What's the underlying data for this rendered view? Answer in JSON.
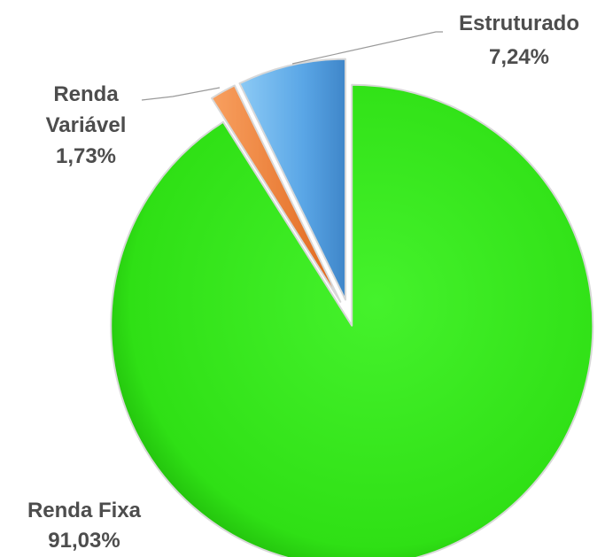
{
  "chart_data": {
    "type": "pie",
    "title": "",
    "slices": [
      {
        "label": "Estruturado",
        "value": 7.24,
        "display": "7,24%",
        "color": "#5aa6e6"
      },
      {
        "label": "Renda Fixa",
        "value": 91.03,
        "display": "91,03%",
        "color": "#33e61a"
      },
      {
        "label": "Renda Variável",
        "label_lines": [
          "Renda",
          "Variável"
        ],
        "value": 1.73,
        "display": "1,73%",
        "color": "#f07a2a"
      }
    ],
    "legend": "none",
    "exploded": true
  }
}
